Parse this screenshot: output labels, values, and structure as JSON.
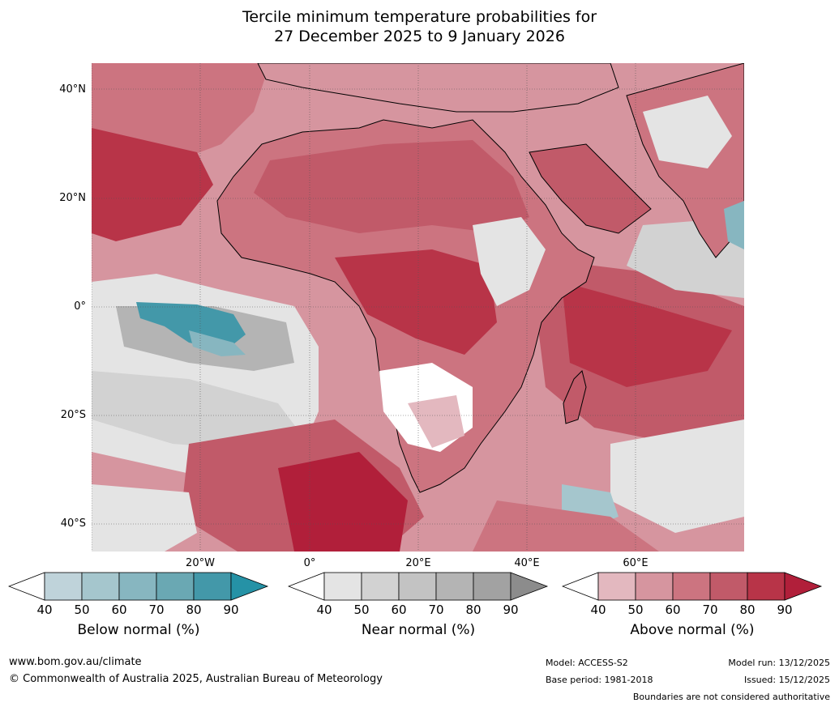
{
  "title": {
    "line1": "Tercile minimum temperature probabilities for",
    "line2": "27 December 2025 to 9 January 2026"
  },
  "map": {
    "lat_labels": [
      "40°N",
      "20°N",
      "0°",
      "20°S",
      "40°S"
    ],
    "lon_labels": [
      "20°W",
      "0°",
      "20°E",
      "40°E",
      "60°E"
    ],
    "region": "Africa"
  },
  "colorbars": [
    {
      "label": "Below normal (%)",
      "ticks": [
        "40",
        "50",
        "60",
        "70",
        "80",
        "90"
      ],
      "colors": [
        "#ffffff",
        "#bfd3da",
        "#a5c6cd",
        "#87b6c0",
        "#6aa8b3",
        "#4398a9",
        "#2592a6"
      ]
    },
    {
      "label": "Near normal (%)",
      "ticks": [
        "40",
        "50",
        "60",
        "70",
        "80",
        "90"
      ],
      "colors": [
        "#ffffff",
        "#e4e4e4",
        "#d2d2d2",
        "#c3c3c3",
        "#b4b4b4",
        "#a2a2a2",
        "#8c8c8c"
      ]
    },
    {
      "label": "Above normal (%)",
      "ticks": [
        "40",
        "50",
        "60",
        "70",
        "80",
        "90"
      ],
      "colors": [
        "#ffffff",
        "#e3b8bf",
        "#d6959f",
        "#cc7480",
        "#c15a69",
        "#b83448",
        "#b11f3a"
      ]
    }
  ],
  "footer": {
    "website": "www.bom.gov.au/climate",
    "copyright": "© Commonwealth of Australia 2025, Australian Bureau of Meteorology",
    "model": "Model: ACCESS-S2",
    "base_period": "Base period: 1981-2018",
    "model_run": "Model run: 13/12/2025",
    "issued": "Issued: 15/12/2025",
    "disclaimer": "Boundaries are not considered authoritative"
  }
}
